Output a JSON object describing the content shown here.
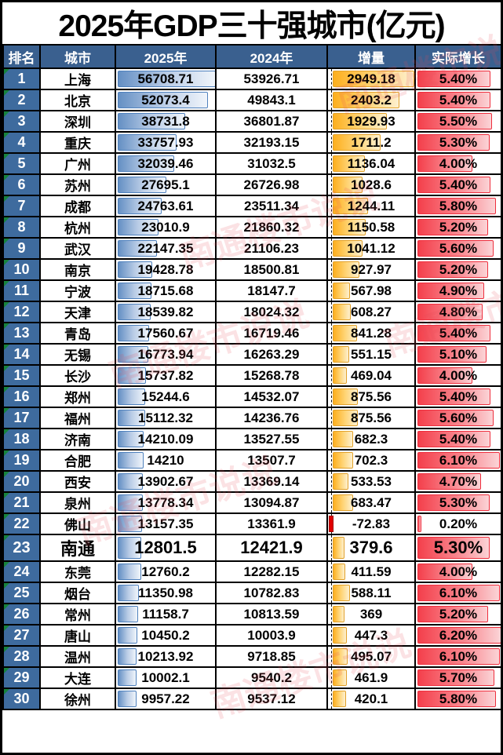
{
  "title": "2025年GDP三十强城市(亿元)",
  "watermark_text": "南通楼市说说",
  "header": {
    "columns": [
      "排名",
      "城市",
      "2025年",
      "2024年",
      "增量",
      "实际增长"
    ]
  },
  "colors": {
    "header_bg": "#3a608f",
    "rank_bg": "#3e6b9e",
    "gdp_bar_blue": "#638ec6",
    "delta_bar_orange": "#ffb628",
    "growth_bar_red": "#f4404c",
    "negative_bar_red": "#e00000",
    "flag_triangle_green": "#17833c",
    "border_black": "#000000"
  },
  "chart_data": {
    "type": "table",
    "title": "2025年GDP三十强城市(亿元)",
    "columns": [
      "排名",
      "城市",
      "2025年",
      "2024年",
      "增量",
      "实际增长"
    ],
    "highlight_row_rank": 23,
    "bar_scales": {
      "gdp_2025_max": 56708.71,
      "delta_axis_min": -72.83,
      "delta_axis_max": 2949.18,
      "growth_max": 6.2
    },
    "rows": [
      {
        "rank": 1,
        "city": "上海",
        "gdp_2025": "56708.71",
        "gdp_2024": "53926.71",
        "delta": "2949.18",
        "growth": "5.40%"
      },
      {
        "rank": 2,
        "city": "北京",
        "gdp_2025": "52073.4",
        "gdp_2024": "49843.1",
        "delta": "2403.2",
        "growth": "5.40%"
      },
      {
        "rank": 3,
        "city": "深圳",
        "gdp_2025": "38731.8",
        "gdp_2024": "36801.87",
        "delta": "1929.93",
        "growth": "5.50%"
      },
      {
        "rank": 4,
        "city": "重庆",
        "gdp_2025": "33757.93",
        "gdp_2024": "32193.15",
        "delta": "1711.2",
        "growth": "5.30%"
      },
      {
        "rank": 5,
        "city": "广州",
        "gdp_2025": "32039.46",
        "gdp_2024": "31032.5",
        "delta": "1136.04",
        "growth": "4.00%"
      },
      {
        "rank": 6,
        "city": "苏州",
        "gdp_2025": "27695.1",
        "gdp_2024": "26726.98",
        "delta": "1028.6",
        "growth": "5.40%"
      },
      {
        "rank": 7,
        "city": "成都",
        "gdp_2025": "24763.61",
        "gdp_2024": "23511.34",
        "delta": "1244.11",
        "growth": "5.80%"
      },
      {
        "rank": 8,
        "city": "杭州",
        "gdp_2025": "23010.9",
        "gdp_2024": "21860.32",
        "delta": "1150.58",
        "growth": "5.20%"
      },
      {
        "rank": 9,
        "city": "武汉",
        "gdp_2025": "22147.35",
        "gdp_2024": "21106.23",
        "delta": "1041.12",
        "growth": "5.60%"
      },
      {
        "rank": 10,
        "city": "南京",
        "gdp_2025": "19428.78",
        "gdp_2024": "18500.81",
        "delta": "927.97",
        "growth": "5.20%"
      },
      {
        "rank": 11,
        "city": "宁波",
        "gdp_2025": "18715.68",
        "gdp_2024": "18147.7",
        "delta": "567.98",
        "growth": "4.90%"
      },
      {
        "rank": 12,
        "city": "天津",
        "gdp_2025": "18539.82",
        "gdp_2024": "18024.32",
        "delta": "608.27",
        "growth": "4.80%"
      },
      {
        "rank": 13,
        "city": "青岛",
        "gdp_2025": "17560.67",
        "gdp_2024": "16719.46",
        "delta": "841.28",
        "growth": "5.40%"
      },
      {
        "rank": 14,
        "city": "无锡",
        "gdp_2025": "16773.94",
        "gdp_2024": "16263.29",
        "delta": "551.15",
        "growth": "5.10%"
      },
      {
        "rank": 15,
        "city": "长沙",
        "gdp_2025": "15737.82",
        "gdp_2024": "15268.78",
        "delta": "469.04",
        "growth": "4.00%"
      },
      {
        "rank": 16,
        "city": "郑州",
        "gdp_2025": "15244.6",
        "gdp_2024": "14532.07",
        "delta": "875.56",
        "growth": "5.40%"
      },
      {
        "rank": 17,
        "city": "福州",
        "gdp_2025": "15112.32",
        "gdp_2024": "14236.76",
        "delta": "875.56",
        "growth": "5.60%"
      },
      {
        "rank": 18,
        "city": "济南",
        "gdp_2025": "14210.09",
        "gdp_2024": "13527.55",
        "delta": "682.3",
        "growth": "5.40%"
      },
      {
        "rank": 19,
        "city": "合肥",
        "gdp_2025": "14210",
        "gdp_2024": "13507.7",
        "delta": "702.3",
        "growth": "6.10%"
      },
      {
        "rank": 20,
        "city": "西安",
        "gdp_2025": "13902.67",
        "gdp_2024": "13369.14",
        "delta": "533.53",
        "growth": "4.70%"
      },
      {
        "rank": 21,
        "city": "泉州",
        "gdp_2025": "13778.34",
        "gdp_2024": "13094.87",
        "delta": "683.47",
        "growth": "5.30%"
      },
      {
        "rank": 22,
        "city": "佛山",
        "gdp_2025": "13157.35",
        "gdp_2024": "13361.9",
        "delta": "-72.83",
        "growth": "0.20%"
      },
      {
        "rank": 23,
        "city": "南通",
        "gdp_2025": "12801.5",
        "gdp_2024": "12421.9",
        "delta": "379.6",
        "growth": "5.30%"
      },
      {
        "rank": 24,
        "city": "东莞",
        "gdp_2025": "12760.2",
        "gdp_2024": "12282.15",
        "delta": "411.59",
        "growth": "4.00%"
      },
      {
        "rank": 25,
        "city": "烟台",
        "gdp_2025": "11350.98",
        "gdp_2024": "10782.83",
        "delta": "588.11",
        "growth": "6.10%"
      },
      {
        "rank": 26,
        "city": "常州",
        "gdp_2025": "11158.7",
        "gdp_2024": "10813.59",
        "delta": "369",
        "growth": "5.20%"
      },
      {
        "rank": 27,
        "city": "唐山",
        "gdp_2025": "10450.2",
        "gdp_2024": "10003.9",
        "delta": "447.3",
        "growth": "6.20%"
      },
      {
        "rank": 28,
        "city": "温州",
        "gdp_2025": "10213.92",
        "gdp_2024": "9718.85",
        "delta": "495.07",
        "growth": "6.10%"
      },
      {
        "rank": 29,
        "city": "大连",
        "gdp_2025": "10002.1",
        "gdp_2024": "9540.2",
        "delta": "461.9",
        "growth": "5.70%"
      },
      {
        "rank": 30,
        "city": "徐州",
        "gdp_2025": "9957.22",
        "gdp_2024": "9537.12",
        "delta": "420.1",
        "growth": "5.80%"
      }
    ]
  }
}
